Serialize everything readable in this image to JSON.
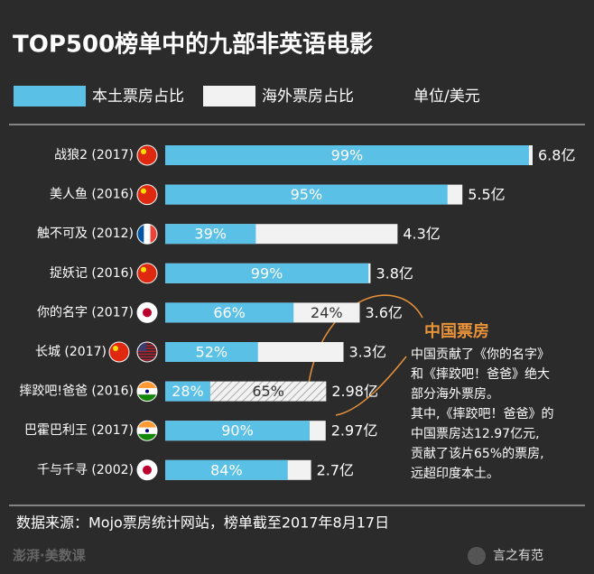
{
  "chart_data": {
    "type": "bar",
    "title": "TOP500榜单中的九部非英语电影",
    "legend": [
      "本土票房占比",
      "海外票房占比"
    ],
    "unit": "单位/美元",
    "categories": [
      "战狼2 (2017)",
      "美人鱼 (2016)",
      "触不可及 (2012)",
      "捉妖记 (2016)",
      "你的名字 (2017)",
      "长城 (2017)",
      "摔跤吧!爸爸 (2016)",
      "巴霍巴利王 (2017)",
      "千与千寻 (2002)"
    ],
    "totals": [
      6.8,
      5.5,
      4.3,
      3.8,
      3.6,
      3.3,
      2.98,
      2.97,
      2.7
    ],
    "total_labels": [
      "6.8亿",
      "5.5亿",
      "4.3亿",
      "3.8亿",
      "3.6亿",
      "3.3亿",
      "2.98亿",
      "2.97亿",
      "2.7亿"
    ],
    "domestic_share": [
      99,
      95,
      39,
      99,
      66,
      52,
      28,
      90,
      84
    ],
    "domestic_labels": [
      "99%",
      "95%",
      "39%",
      "99%",
      "66%",
      "52%",
      "28%",
      "90%",
      "84%"
    ],
    "overseas_share": [
      null,
      null,
      null,
      null,
      24,
      null,
      65,
      null,
      null
    ],
    "overseas_labels": [
      null,
      null,
      null,
      null,
      "24%",
      null,
      "65%",
      null,
      null
    ],
    "colors": {
      "domestic": "#5bc0e6",
      "overseas": "#f2f2f2"
    },
    "annotation": {
      "title": "中国票房",
      "lines": [
        "中国贡献了《你的名字》",
        "和《摔跤吧！爸爸》绝大",
        "部分海外票房。",
        "其中,《摔跤吧！爸爸》的",
        "中国票房达12.97亿元,",
        "贡献了该片65%的票房,",
        "远超印度本土。"
      ]
    },
    "source": "数据来源：Mojo票房统计网站，榜单截至2017年8月17日",
    "watermarks": [
      "澎湃·美数课",
      "言之有范"
    ]
  }
}
